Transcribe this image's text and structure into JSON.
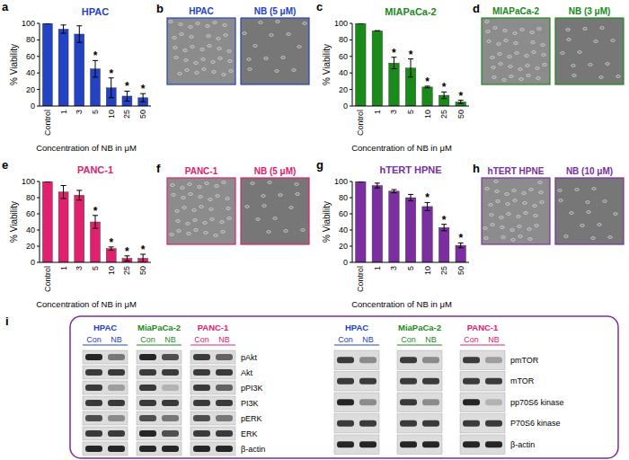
{
  "chart_data": [
    {
      "type": "bar",
      "panel_label": "a",
      "title": "HPAC",
      "x_label": "Concentration of NB in μM",
      "y_label": "% Viability",
      "categories": [
        "Control",
        "1",
        "3",
        "5",
        "10",
        "25",
        "50"
      ],
      "values": [
        100,
        93,
        87,
        45,
        22,
        12,
        10
      ],
      "errors": [
        0,
        5,
        10,
        10,
        12,
        6,
        5
      ],
      "color": "#2342c4",
      "ylim": [
        0,
        100
      ],
      "yticks": [
        0,
        20,
        40,
        60,
        80,
        100
      ],
      "grid": false,
      "annotations": [
        {
          "category": "5",
          "text": "*"
        },
        {
          "category": "10",
          "text": "*"
        },
        {
          "category": "25",
          "text": "*"
        },
        {
          "category": "50",
          "text": "*"
        }
      ]
    },
    {
      "type": "bar",
      "panel_label": "c",
      "title": "MIAPaCa-2",
      "x_label": "Concentration of NB in μM",
      "y_label": "% Viability",
      "categories": [
        "Control",
        "1",
        "3",
        "5",
        "10",
        "25",
        "50"
      ],
      "values": [
        100,
        91,
        52,
        46,
        23,
        13,
        5
      ],
      "errors": [
        0,
        0,
        7,
        11,
        1,
        4,
        2
      ],
      "color": "#1a8a1a",
      "ylim": [
        0,
        100
      ],
      "yticks": [
        0,
        20,
        40,
        60,
        80,
        100
      ],
      "grid": false,
      "annotations": [
        {
          "category": "3",
          "text": "*"
        },
        {
          "category": "5",
          "text": "*"
        },
        {
          "category": "10",
          "text": "*"
        },
        {
          "category": "25",
          "text": "*"
        },
        {
          "category": "50",
          "text": "*"
        }
      ]
    },
    {
      "type": "bar",
      "panel_label": "e",
      "title": "PANC-1",
      "x_label": "Concentration of NB in μM",
      "y_label": "% Viability",
      "categories": [
        "Control",
        "1",
        "3",
        "5",
        "10",
        "25",
        "50"
      ],
      "values": [
        100,
        87,
        83,
        50,
        17,
        5,
        5
      ],
      "errors": [
        0,
        8,
        6,
        8,
        2,
        3,
        5
      ],
      "color": "#e0226e",
      "ylim": [
        0,
        100
      ],
      "yticks": [
        0,
        20,
        40,
        60,
        80,
        100
      ],
      "grid": false,
      "annotations": [
        {
          "category": "5",
          "text": "*"
        },
        {
          "category": "10",
          "text": "*"
        },
        {
          "category": "25",
          "text": "*"
        },
        {
          "category": "50",
          "text": "*"
        }
      ]
    },
    {
      "type": "bar",
      "panel_label": "g",
      "title": "hTERT HPNE",
      "x_label": "Concentration of NB in μM",
      "y_label": "% Viability",
      "categories": [
        "Control",
        "1",
        "3",
        "5",
        "10",
        "25",
        "50"
      ],
      "values": [
        100,
        95,
        88,
        80,
        69,
        43,
        21
      ],
      "errors": [
        0,
        3,
        2,
        4,
        5,
        4,
        3
      ],
      "color": "#7a2ea0",
      "ylim": [
        0,
        100
      ],
      "yticks": [
        0,
        20,
        40,
        60,
        80,
        100
      ],
      "grid": false,
      "annotations": [
        {
          "category": "10",
          "text": "*"
        },
        {
          "category": "25",
          "text": "*"
        },
        {
          "category": "50",
          "text": "*"
        }
      ]
    }
  ],
  "image_panels": [
    {
      "panel_label": "b",
      "color": "#2342c4",
      "images": [
        {
          "label": "HPAC"
        },
        {
          "label": "NB (5 μM)"
        }
      ]
    },
    {
      "panel_label": "d",
      "color": "#1a8a1a",
      "images": [
        {
          "label": "MIAPaCa-2"
        },
        {
          "label": "NB (3 μM)"
        }
      ]
    },
    {
      "panel_label": "f",
      "color": "#e0226e",
      "images": [
        {
          "label": "PANC-1"
        },
        {
          "label": "NB (5 μM)"
        }
      ]
    },
    {
      "panel_label": "h",
      "color": "#7a2ea0",
      "images": [
        {
          "label": "hTERT HPNE"
        },
        {
          "label": "NB (10 μM)"
        }
      ]
    }
  ],
  "western_blot": {
    "panel_label": "i",
    "color": "#7a2ea0",
    "groups": [
      {
        "rows": [
          "pAkt",
          "Akt",
          "pPI3K",
          "PI3K",
          "pERK",
          "ERK",
          "β-actin"
        ],
        "blots": [
          {
            "cell_line": "HPAC",
            "color": "#2342c4",
            "lanes": [
              "Con",
              "NB"
            ],
            "bands": [
              [
                0.9,
                0.5
              ],
              [
                0.8,
                0.8
              ],
              [
                0.8,
                0.3
              ],
              [
                0.8,
                0.8
              ],
              [
                0.7,
                0.4
              ],
              [
                0.8,
                0.8
              ],
              [
                0.9,
                0.9
              ]
            ]
          },
          {
            "cell_line": "MiaPaCa-2",
            "color": "#1a8a1a",
            "lanes": [
              "Con",
              "NB"
            ],
            "bands": [
              [
                0.9,
                0.7
              ],
              [
                0.8,
                0.8
              ],
              [
                0.8,
                0.2
              ],
              [
                0.8,
                0.8
              ],
              [
                0.7,
                0.5
              ],
              [
                0.9,
                0.7
              ],
              [
                0.9,
                0.9
              ]
            ]
          },
          {
            "cell_line": "PANC-1",
            "color": "#e0226e",
            "lanes": [
              "Con",
              "NB"
            ],
            "bands": [
              [
                0.8,
                0.6
              ],
              [
                0.8,
                0.8
              ],
              [
                0.8,
                0.6
              ],
              [
                0.8,
                0.8
              ],
              [
                0.7,
                0.5
              ],
              [
                0.8,
                0.8
              ],
              [
                0.9,
                0.9
              ]
            ]
          }
        ]
      },
      {
        "rows": [
          "pmTOR",
          "mTOR",
          "pp70S6 kinase",
          "P70S6 kinase",
          "β-actin"
        ],
        "blots": [
          {
            "cell_line": "HPAC",
            "color": "#2342c4",
            "lanes": [
              "Con",
              "NB"
            ],
            "bands": [
              [
                0.8,
                0.4
              ],
              [
                0.8,
                0.8
              ],
              [
                0.9,
                0.4
              ],
              [
                0.8,
                0.8
              ],
              [
                0.9,
                0.9
              ]
            ]
          },
          {
            "cell_line": "MiaPaCa-2",
            "color": "#1a8a1a",
            "lanes": [
              "Con",
              "NB"
            ],
            "bands": [
              [
                0.8,
                0.4
              ],
              [
                0.8,
                0.8
              ],
              [
                0.8,
                0.4
              ],
              [
                0.8,
                0.8
              ],
              [
                0.9,
                0.9
              ]
            ]
          },
          {
            "cell_line": "PANC-1",
            "color": "#e0226e",
            "lanes": [
              "Con",
              "NB"
            ],
            "bands": [
              [
                0.8,
                0.3
              ],
              [
                0.8,
                0.8
              ],
              [
                0.9,
                0.2
              ],
              [
                0.8,
                0.8
              ],
              [
                0.9,
                0.9
              ]
            ]
          }
        ]
      }
    ]
  }
}
